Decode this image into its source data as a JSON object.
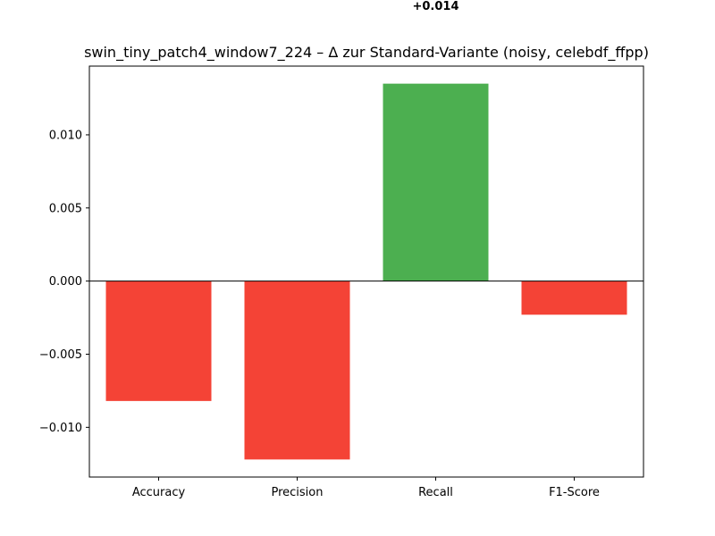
{
  "chart_data": {
    "type": "bar",
    "title": "swin_tiny_patch4_window7_224 – Δ zur Standard-Variante (noisy, celebdf_ffpp)",
    "xlabel": "",
    "ylabel": "",
    "categories": [
      "Accuracy",
      "Precision",
      "Recall",
      "F1-Score"
    ],
    "values": [
      -0.0082,
      -0.0122,
      0.0135,
      -0.0023
    ],
    "ylim": [
      -0.0134,
      0.0147
    ],
    "yticks": [
      -0.01,
      -0.005,
      0.0,
      0.005,
      0.01
    ],
    "ytick_labels": [
      "−0.010",
      "−0.005",
      "0.000",
      "0.005",
      "0.010"
    ],
    "bar_colors": [
      "#f44336",
      "#f44336",
      "#4caf50",
      "#f44336"
    ],
    "data_labels": [
      {
        "category": "Recall",
        "text": "+0.014"
      }
    ],
    "grid": false,
    "zero_line": true
  }
}
